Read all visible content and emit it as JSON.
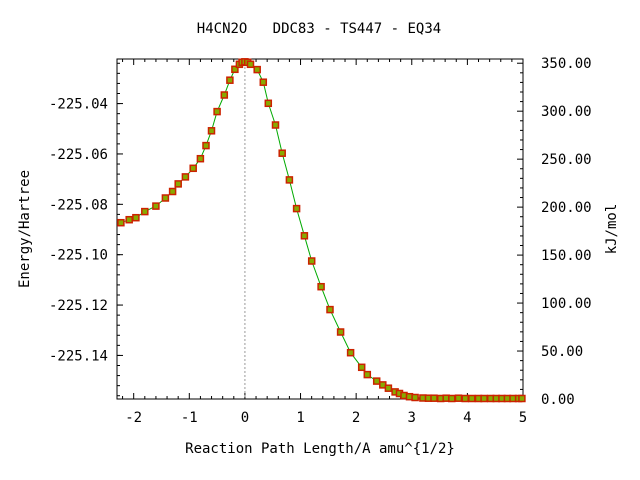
{
  "chart_data": {
    "type": "line",
    "title": "H4CN2O   DDC83 - TS447 - EQ34",
    "xlabel": "Reaction Path Length/A amu^{1/2}",
    "ylabel_left": "Energy/Hartree",
    "ylabel_right": "kJ/mol",
    "xlim": [
      -2.3,
      5
    ],
    "ylim_left": [
      -225.1573,
      -225.0223
    ],
    "ylim_right": [
      0,
      354.4
    ],
    "x_ticks": [
      "-2",
      "-1",
      "0",
      "1",
      "2",
      "3",
      "4",
      "5"
    ],
    "x_tick_values": [
      -2,
      -1,
      0,
      1,
      2,
      3,
      4,
      5
    ],
    "y_left_ticks": [
      "-225.04",
      "-225.06",
      "-225.08",
      "-225.10",
      "-225.12",
      "-225.14"
    ],
    "y_left_tick_values": [
      -225.04,
      -225.06,
      -225.08,
      -225.1,
      -225.12,
      -225.14
    ],
    "y_right_ticks": [
      "350.00",
      "300.00",
      "250.00",
      "200.00",
      "150.00",
      "100.00",
      "50.00",
      "0.00"
    ],
    "y_right_tick_values": [
      350,
      300,
      250,
      200,
      150,
      100,
      50,
      0
    ],
    "ts_marker_x": 0,
    "line_color": "#00aa00",
    "marker_color": "#cc2200",
    "marker_fill": "#88aa00",
    "guide_color": "#999999",
    "series": [
      {
        "x": [
          -2.23,
          -2.08,
          -1.96,
          -1.8,
          -1.6,
          -1.43,
          -1.3,
          -1.2,
          -1.07,
          -0.93,
          -0.8,
          -0.7,
          -0.6,
          -0.5,
          -0.37,
          -0.27,
          -0.18,
          -0.1,
          -0.05,
          0.0,
          0.05,
          0.1,
          0.22,
          0.33,
          0.42,
          0.55,
          0.67,
          0.8,
          0.93,
          1.07,
          1.2,
          1.37,
          1.53,
          1.72,
          1.9,
          2.1,
          2.2,
          2.37,
          2.48,
          2.58,
          2.7,
          2.78,
          2.86,
          2.96,
          3.06,
          3.2,
          3.3,
          3.4,
          3.52,
          3.62,
          3.72,
          3.84,
          3.96,
          4.08,
          4.2,
          4.3,
          4.42,
          4.52,
          4.62,
          4.72,
          4.82,
          4.92,
          4.98
        ],
        "y": [
          -225.0873,
          -225.0861,
          -225.0853,
          -225.0829,
          -225.0807,
          -225.0775,
          -225.0749,
          -225.0719,
          -225.0691,
          -225.0657,
          -225.0619,
          -225.0567,
          -225.0508,
          -225.0432,
          -225.0366,
          -225.0307,
          -225.0264,
          -225.0244,
          -225.0236,
          -225.0234,
          -225.0236,
          -225.0244,
          -225.0265,
          -225.0315,
          -225.0399,
          -225.0485,
          -225.0597,
          -225.0703,
          -225.0817,
          -225.0925,
          -225.1025,
          -225.1127,
          -225.1218,
          -225.1307,
          -225.1389,
          -225.1447,
          -225.1476,
          -225.1502,
          -225.1517,
          -225.153,
          -225.1545,
          -225.1551,
          -225.1559,
          -225.1564,
          -225.1567,
          -225.1569,
          -225.157,
          -225.157,
          -225.1571,
          -225.157,
          -225.1571,
          -225.157,
          -225.1571,
          -225.1571,
          -225.1571,
          -225.1571,
          -225.1571,
          -225.1571,
          -225.1571,
          -225.1571,
          -225.1571,
          -225.1571,
          -225.1571
        ]
      }
    ]
  }
}
